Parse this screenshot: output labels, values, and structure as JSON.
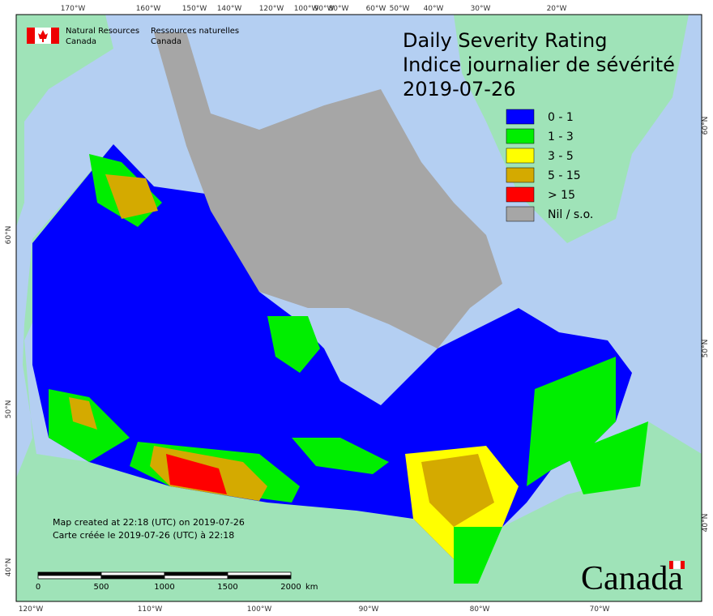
{
  "agency": {
    "en": [
      "Natural Resources",
      "Canada"
    ],
    "fr": [
      "Ressources naturelles",
      "Canada"
    ]
  },
  "title": [
    "Daily Severity Rating",
    "Indice journalier de sévérité",
    "2019-07-26"
  ],
  "legend": [
    {
      "label": "0 - 1",
      "color": "#0000ff"
    },
    {
      "label": "1 - 3",
      "color": "#00ee00"
    },
    {
      "label": "3 - 5",
      "color": "#ffff00"
    },
    {
      "label": "5 - 15",
      "color": "#d4aa00"
    },
    {
      "label": "> 15",
      "color": "#ff0000"
    },
    {
      "label": "Nil / s.o.",
      "color": "#a6a6a6"
    }
  ],
  "longitude_top": [
    "170°W",
    "160°W",
    "150°W",
    "140°W",
    "120°W",
    "100°W",
    "90°W",
    "80°W",
    "60°W",
    "50°W",
    "40°W",
    "30°W",
    "20°W"
  ],
  "longitude_bottom": [
    "120°W",
    "110°W",
    "100°W",
    "90°W",
    "80°W",
    "70°W"
  ],
  "latitude_left": [
    "60°N",
    "50°N",
    "40°N"
  ],
  "latitude_right": [
    "60°N",
    "50°N",
    "40°N"
  ],
  "credits": [
    "Map created at 22:18 (UTC) on 2019-07-26",
    "Carte créée le 2019-07-26 (UTC) à 22:18"
  ],
  "scale_bar": {
    "labels": [
      0,
      500,
      1000,
      1500,
      2000
    ],
    "unit": "km"
  },
  "wordmark": "Canada"
}
